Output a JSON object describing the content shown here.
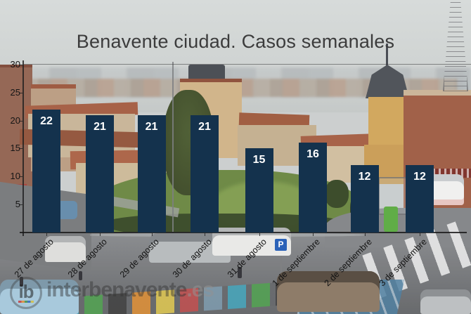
{
  "title": "Benavente ciudad. Casos semanales",
  "chart_data": {
    "type": "bar",
    "title": "Benavente ciudad. Casos semanales",
    "categories": [
      "27 de agosto",
      "28 de agosto",
      "29 de agosto",
      "30 de agosto",
      "31 de agosto",
      "1 de septiembre",
      "2 de septiembre",
      "3 de septiembre"
    ],
    "values": [
      22,
      21,
      21,
      21,
      15,
      16,
      12,
      12
    ],
    "xlabel": "",
    "ylabel": "",
    "ylim": [
      0,
      30
    ],
    "yticks": [
      5,
      10,
      15,
      20,
      25,
      30
    ],
    "bar_color": "#14324d",
    "value_label_color": "#ffffff",
    "axis_color": "#1e1e1e",
    "grid": "horizontal gridline at y=30 only",
    "legend_position": "none",
    "xtick_rotation_deg": 45,
    "background": "photograph of Benavente town square"
  },
  "watermark": {
    "logo_text": "ib",
    "brand": "interbenavente",
    "tld": ".es"
  },
  "photo": {
    "parking_sign_label": "P"
  }
}
